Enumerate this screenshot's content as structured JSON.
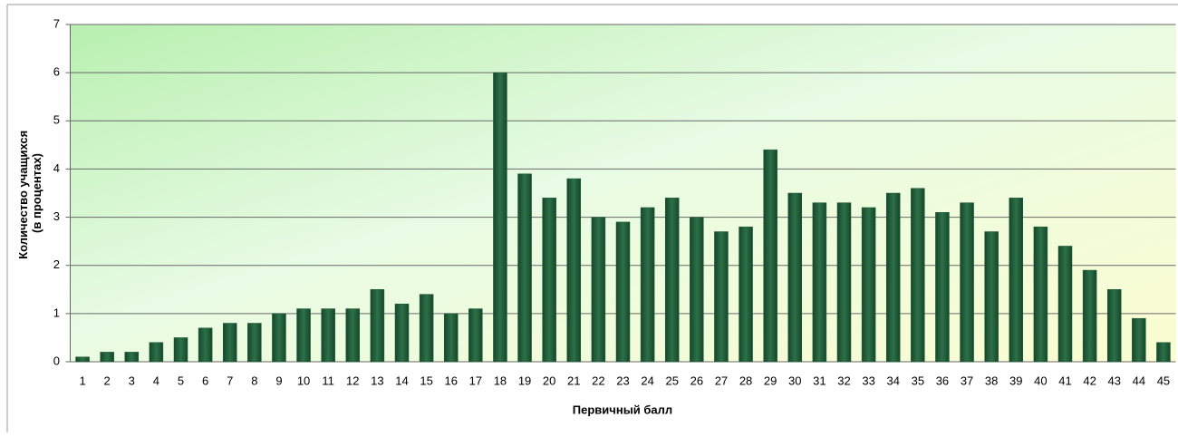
{
  "chart_data": {
    "type": "bar",
    "ylabel": [
      "Количество учащихся",
      "(в процентах)"
    ],
    "xlabel": "Первичный балл",
    "categories": [
      "1",
      "2",
      "3",
      "4",
      "5",
      "6",
      "7",
      "8",
      "9",
      "10",
      "11",
      "12",
      "13",
      "14",
      "15",
      "16",
      "17",
      "18",
      "19",
      "20",
      "21",
      "22",
      "23",
      "24",
      "25",
      "26",
      "27",
      "28",
      "29",
      "30",
      "31",
      "32",
      "33",
      "34",
      "35",
      "36",
      "37",
      "38",
      "39",
      "40",
      "41",
      "42",
      "43",
      "44",
      "45"
    ],
    "values": [
      0.1,
      0.2,
      0.2,
      0.4,
      0.5,
      0.7,
      0.8,
      0.8,
      1.0,
      1.1,
      1.1,
      1.1,
      1.5,
      1.2,
      1.4,
      1.0,
      1.1,
      6.0,
      3.9,
      3.4,
      3.8,
      3.0,
      2.9,
      3.2,
      3.4,
      3.0,
      2.7,
      2.8,
      4.4,
      3.5,
      3.3,
      3.3,
      3.2,
      3.5,
      3.6,
      3.1,
      3.3,
      2.7,
      3.4,
      2.8,
      2.4,
      1.9,
      1.5,
      0.9,
      0.4
    ],
    "color": "#1e5a36",
    "ylim": [
      0,
      7
    ],
    "yticks": [
      0,
      1,
      2,
      3,
      4,
      5,
      6,
      7
    ],
    "grid": true
  }
}
